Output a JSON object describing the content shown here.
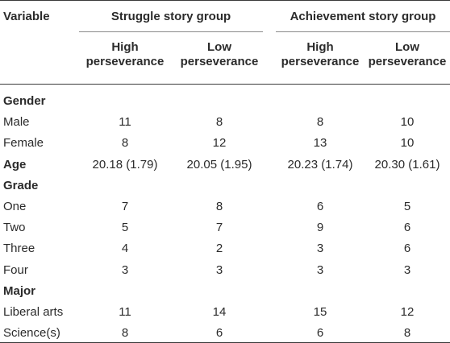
{
  "header": {
    "variable": "Variable",
    "group1": "Struggle story group",
    "group2": "Achievement story group",
    "subcols": [
      {
        "line1": "High",
        "line2": "perseverance"
      },
      {
        "line1": "Low",
        "line2": "perseverance"
      },
      {
        "line1": "High",
        "line2": "perseverance"
      },
      {
        "line1": "Low",
        "line2": "perseverance"
      }
    ]
  },
  "rows": [
    {
      "label": "Gender",
      "bold": true,
      "values": []
    },
    {
      "label": "Male",
      "bold": false,
      "values": [
        "11",
        "8",
        "8",
        "10"
      ]
    },
    {
      "label": "Female",
      "bold": false,
      "values": [
        "8",
        "12",
        "13",
        "10"
      ]
    },
    {
      "label": "Age",
      "bold": true,
      "values": [
        "20.18 (1.79)",
        "20.05 (1.95)",
        "20.23 (1.74)",
        "20.30 (1.61)"
      ]
    },
    {
      "label": "Grade",
      "bold": true,
      "values": []
    },
    {
      "label": "One",
      "bold": false,
      "values": [
        "7",
        "8",
        "6",
        "5"
      ]
    },
    {
      "label": "Two",
      "bold": false,
      "values": [
        "5",
        "7",
        "9",
        "6"
      ]
    },
    {
      "label": "Three",
      "bold": false,
      "values": [
        "4",
        "2",
        "3",
        "6"
      ]
    },
    {
      "label": "Four",
      "bold": false,
      "values": [
        "3",
        "3",
        "3",
        "3"
      ]
    },
    {
      "label": "Major",
      "bold": true,
      "values": []
    },
    {
      "label": "Liberal arts",
      "bold": false,
      "values": [
        "11",
        "14",
        "15",
        "12"
      ]
    },
    {
      "label": "Science(s)",
      "bold": false,
      "values": [
        "8",
        "6",
        "6",
        "8"
      ]
    }
  ]
}
